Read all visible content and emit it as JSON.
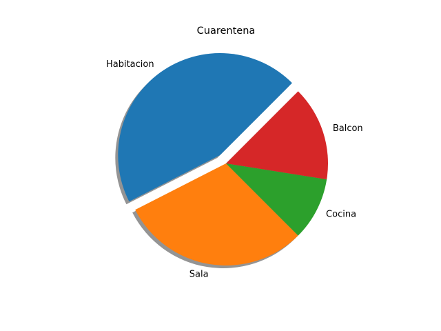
{
  "chart_data": {
    "type": "pie",
    "title": "Cuarentena",
    "categories": [
      "Habitacion",
      "Sala",
      "Cocina",
      "Balcon"
    ],
    "values": [
      45,
      30,
      10,
      15
    ],
    "colors": [
      "#1f77b4",
      "#ff7f0e",
      "#2ca02c",
      "#d62728"
    ],
    "explode": [
      0.1,
      0,
      0,
      0
    ],
    "shadow": true,
    "start_angle_deg": 45
  }
}
